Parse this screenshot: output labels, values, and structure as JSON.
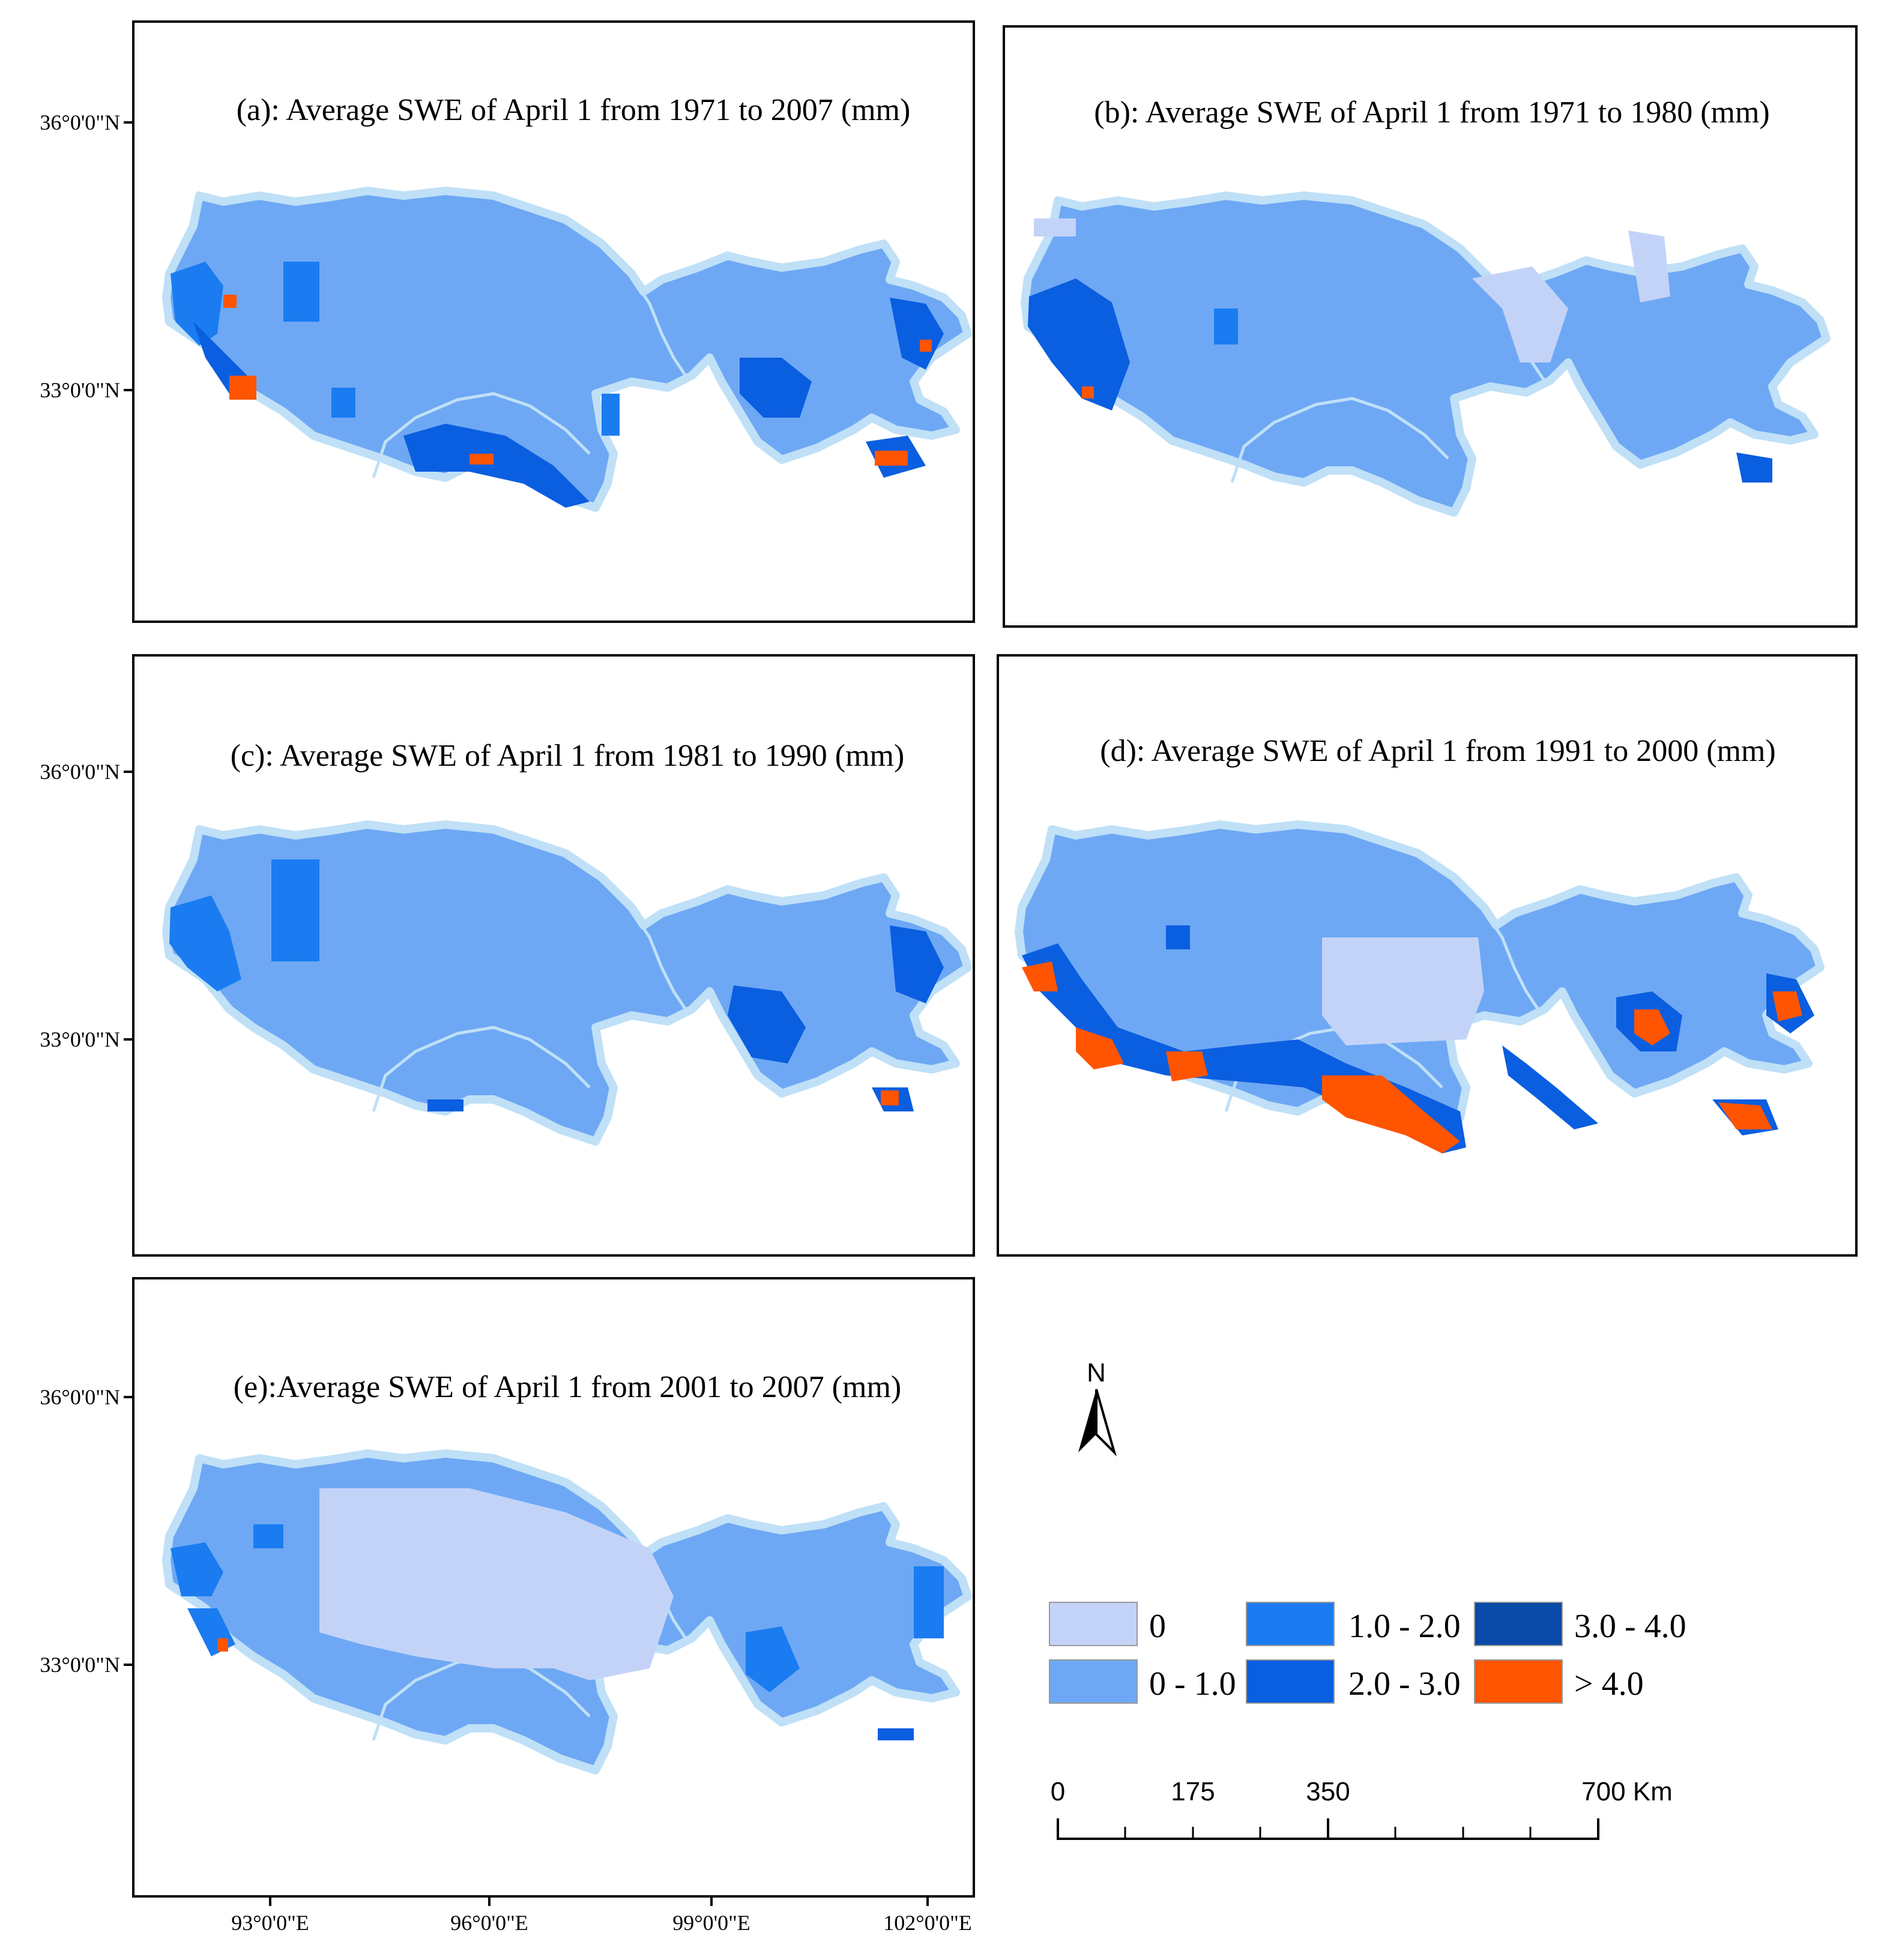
{
  "panels": [
    {
      "id": "a",
      "title": "(a): Average SWE of April 1 from 1971 to 2007 (mm)"
    },
    {
      "id": "b",
      "title": "(b): Average SWE of April 1 from 1971 to 1980 (mm)"
    },
    {
      "id": "c",
      "title": "(c): Average SWE of April 1 from 1981 to 1990 (mm)"
    },
    {
      "id": "d",
      "title": "(d): Average SWE of April 1 from 1991 to 2000 (mm)"
    },
    {
      "id": "e",
      "title": "(e):Average SWE of April 1 from  2001 to 2007 (mm)"
    }
  ],
  "lat_labels": [
    "36°0'0\"N",
    "33°0'0\"N"
  ],
  "lon_labels": [
    "93°0'0\"E",
    "96°0'0\"E",
    "99°0'0\"E",
    "102°0'0\"E"
  ],
  "north_arrow": {
    "label": "N",
    "icon": "north-arrow-icon"
  },
  "legend": {
    "items": [
      {
        "label": "0",
        "color": "#c3d3f8"
      },
      {
        "label": "0 - 1.0",
        "color": "#6ea8f4"
      },
      {
        "label": "1.0 - 2.0",
        "color": "#1a7cf0"
      },
      {
        "label": "2.0 - 3.0",
        "color": "#0a5ee0"
      },
      {
        "label": "3.0 - 4.0",
        "color": "#0a4aa8"
      },
      {
        "label": "> 4.0",
        "color": "#ff5500"
      }
    ]
  },
  "scale_bar": {
    "ticks": [
      "0",
      "175",
      "350",
      "700 Km"
    ]
  },
  "colors": {
    "basin_outline": "#bfe0f7",
    "frame": "#000000"
  }
}
